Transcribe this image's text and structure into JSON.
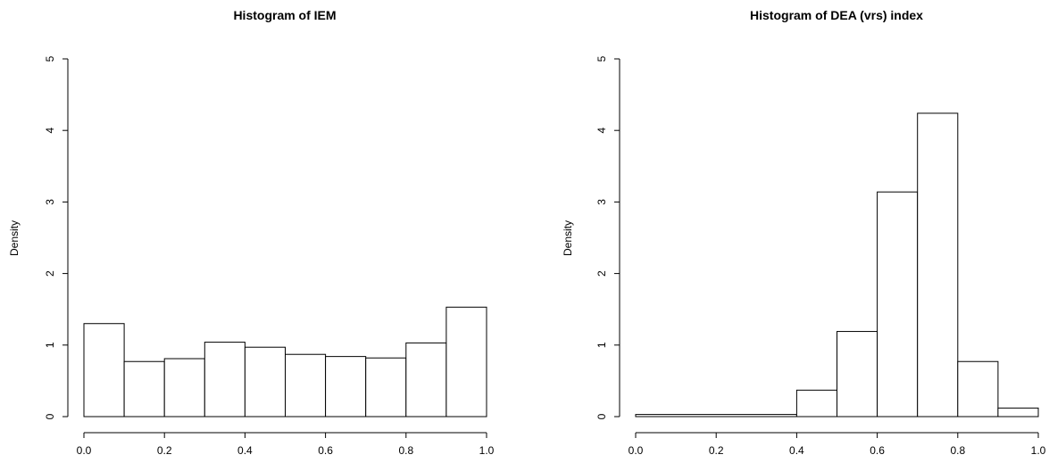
{
  "chart_data": [
    {
      "type": "bar",
      "title": "Histogram of IEM",
      "xlabel": "",
      "ylabel": "Density",
      "xlim": [
        0,
        1
      ],
      "ylim": [
        0,
        5
      ],
      "x_ticks": [
        "0.0",
        "0.2",
        "0.4",
        "0.6",
        "0.8",
        "1.0"
      ],
      "y_ticks": [
        "0",
        "1",
        "2",
        "3",
        "4",
        "5"
      ],
      "bins": [
        {
          "start": 0.0,
          "end": 0.1,
          "density": 1.3
        },
        {
          "start": 0.1,
          "end": 0.2,
          "density": 0.77
        },
        {
          "start": 0.2,
          "end": 0.3,
          "density": 0.81
        },
        {
          "start": 0.3,
          "end": 0.4,
          "density": 1.04
        },
        {
          "start": 0.4,
          "end": 0.5,
          "density": 0.97
        },
        {
          "start": 0.5,
          "end": 0.6,
          "density": 0.87
        },
        {
          "start": 0.6,
          "end": 0.7,
          "density": 0.84
        },
        {
          "start": 0.7,
          "end": 0.8,
          "density": 0.82
        },
        {
          "start": 0.8,
          "end": 0.9,
          "density": 1.03
        },
        {
          "start": 0.9,
          "end": 1.0,
          "density": 1.53
        }
      ]
    },
    {
      "type": "bar",
      "title": "Histogram of DEA (vrs) index",
      "xlabel": "",
      "ylabel": "Density",
      "xlim": [
        0,
        1
      ],
      "ylim": [
        0,
        5
      ],
      "x_ticks": [
        "0.0",
        "0.2",
        "0.4",
        "0.6",
        "0.8",
        "1.0"
      ],
      "y_ticks": [
        "0",
        "1",
        "2",
        "3",
        "4",
        "5"
      ],
      "bins": [
        {
          "start": 0.0,
          "end": 0.4,
          "density": 0.03
        },
        {
          "start": 0.4,
          "end": 0.5,
          "density": 0.37
        },
        {
          "start": 0.5,
          "end": 0.6,
          "density": 1.19
        },
        {
          "start": 0.6,
          "end": 0.7,
          "density": 3.14
        },
        {
          "start": 0.7,
          "end": 0.8,
          "density": 4.24
        },
        {
          "start": 0.8,
          "end": 0.9,
          "density": 0.77
        },
        {
          "start": 0.9,
          "end": 1.0,
          "density": 0.12
        }
      ]
    }
  ]
}
